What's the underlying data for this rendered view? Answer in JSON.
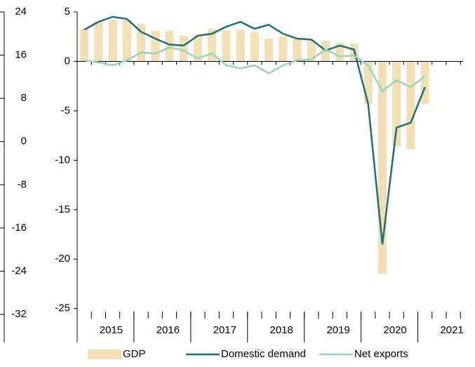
{
  "chart_data": {
    "type": "bar_line",
    "categories": [
      null,
      null,
      null,
      null,
      null,
      null,
      null,
      null,
      null,
      null,
      null,
      null,
      null,
      null,
      null,
      null,
      null,
      null,
      null,
      null,
      null,
      null,
      null,
      null,
      null,
      null
    ],
    "x_groups": [
      "2015",
      "2016",
      "2017",
      "2018",
      "2019",
      "2020",
      "2021"
    ],
    "ylim": [
      -26.3,
      5
    ],
    "yticks": [
      5,
      0,
      -5,
      -10,
      -15,
      -20,
      -25
    ],
    "y2lim": [
      -33.3,
      24
    ],
    "y2ticks": [
      24,
      16,
      8,
      0,
      -8,
      -16,
      -24,
      -32
    ],
    "series": [
      {
        "name": "GDP",
        "kind": "bar",
        "color": "#f2dfb5",
        "values": [
          3.3,
          4.0,
          4.2,
          4.2,
          3.8,
          3.1,
          3.1,
          2.6,
          2.7,
          3.3,
          3.1,
          3.2,
          2.9,
          2.3,
          2.5,
          2.3,
          2.2,
          2.1,
          1.9,
          1.8,
          -4.3,
          -21.5,
          -8.6,
          -8.9,
          -4.3,
          null
        ]
      },
      {
        "name": "Domestic demand",
        "kind": "line",
        "color": "#1b6f78",
        "values": [
          3.2,
          4.0,
          4.5,
          4.3,
          3.0,
          2.3,
          1.7,
          1.6,
          2.6,
          2.8,
          3.5,
          4.0,
          3.3,
          3.7,
          2.8,
          2.3,
          2.2,
          1.1,
          1.6,
          1.2,
          -4.3,
          -18.5,
          -6.7,
          -6.2,
          -2.6,
          null
        ]
      },
      {
        "name": "Net exports",
        "kind": "line",
        "color": "#93d6ba",
        "values": [
          0.1,
          -0.1,
          -0.4,
          0.1,
          0.9,
          0.8,
          1.4,
          1.1,
          0.3,
          0.8,
          -0.4,
          -0.7,
          -0.4,
          -1.2,
          -0.4,
          0.1,
          0.2,
          1.2,
          0.5,
          0.6,
          -0.4,
          -3.0,
          -1.9,
          -2.6,
          -1.5,
          null
        ]
      }
    ]
  }
}
